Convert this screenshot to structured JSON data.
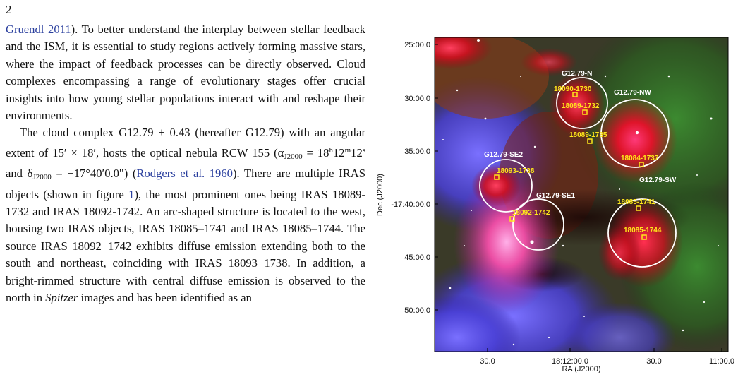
{
  "page": {
    "number": "2"
  },
  "text": {
    "p1": {
      "cite": "Gruendl 2011",
      "rest": "). To better understand the interplay between stellar feedback and the ISM, it is essential to study regions actively forming massive stars, where the impact of feedback processes can be directly observed. Cloud complexes encompassing a range of evolutionary stages offer crucial insights into how young stellar populations interact with and reshape their environments."
    },
    "p2": {
      "a": "The cloud complex G12.79 + 0.43 (hereafter G12.79) with an angular extent of 15′ × 18′, hosts the optical nebula RCW 155 (α",
      "sub1": "J2000",
      "b": " = 18",
      "h": "h",
      "c": "12",
      "m": "m",
      "d": "12",
      "s": "s",
      "e": " and δ",
      "sub2": "J2000",
      "f": " = −17°40′0.0\") (",
      "cite1": "Rodgers et al. 1960",
      "g": "). There are multiple IRAS objects (shown in figure ",
      "fig": "1",
      "i": "), the most prominent ones being IRAS 18089-1732 and IRAS 18092-1742. An arc-shaped structure is located to the west, housing two IRAS objects, IRAS 18085–1741 and IRAS 18085–1744. The source IRAS 18092−1742 exhibits diffuse emission extending both to the south and northeast, coinciding with IRAS 18093−1738. In addition, a bright-rimmed structure with central diffuse emission is observed to the north in ",
      "em": "Spitzer",
      "j": " images and has been identified as an"
    }
  },
  "figure": {
    "ylabel": "Dec (J2000)",
    "xlabel": "RA (J2000)",
    "yticks": [
      "25:00.0",
      "30:00.0",
      "35:00.0",
      "-17:40:00.0",
      "45:00.0",
      "50:00.0"
    ],
    "xticks": [
      "30.0",
      "18:12:00.0",
      "30.0",
      "11:00.0"
    ],
    "regions": [
      {
        "label": "G12.79-N"
      },
      {
        "label": "G12.79-NW"
      },
      {
        "label": "G12.79-SE2"
      },
      {
        "label": "G12.79-SE1"
      },
      {
        "label": "G12.79-SW"
      }
    ],
    "sources": [
      {
        "label": "18090-1730"
      },
      {
        "label": "18089-1732"
      },
      {
        "label": "18089-1735"
      },
      {
        "label": "18084-1737"
      },
      {
        "label": "18093-1738"
      },
      {
        "label": "18092-1742"
      },
      {
        "label": "18085-1741"
      },
      {
        "label": "18085-1744"
      }
    ],
    "colors": {
      "region": "#ffffff",
      "source": "#ffe81a",
      "citation": "#2a3f9e"
    }
  }
}
